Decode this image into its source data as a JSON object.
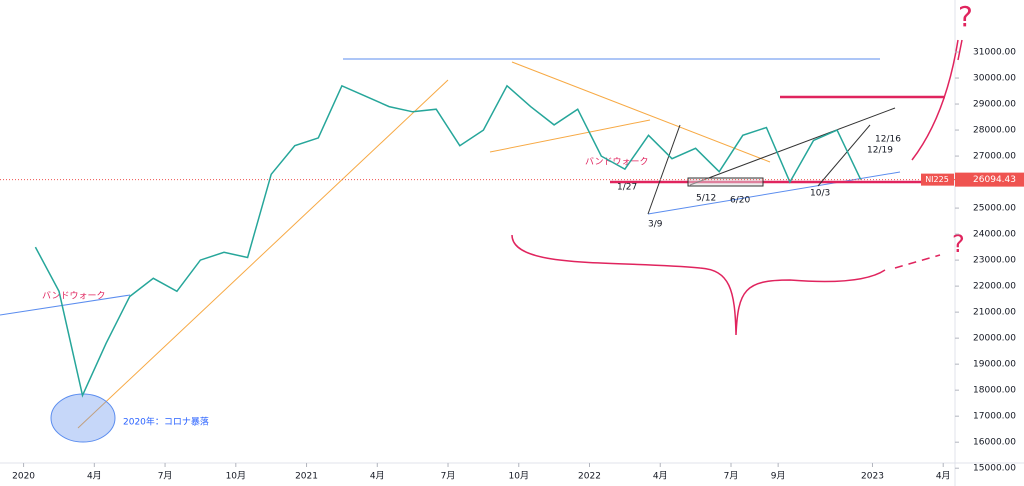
{
  "chart_data": {
    "type": "line",
    "symbol": "NI225",
    "last_value": 26094.43,
    "x": [
      0.5,
      1.5,
      2.5,
      3.5,
      4.5,
      5.5,
      6.5,
      7.5,
      8.5,
      9.5,
      10.5,
      11.5,
      12.5,
      13.5,
      14.5,
      15.5,
      16.5,
      17.5,
      18.5,
      19.5,
      20.5,
      21.5,
      22.5,
      23.5,
      24.5,
      25.5,
      26.5,
      27.5,
      28.5,
      29.5,
      30.5,
      31.5,
      32.5,
      33.5,
      34.5,
      35.5
    ],
    "values": [
      23500,
      21800,
      17800,
      19800,
      21600,
      22300,
      21800,
      23000,
      23300,
      23100,
      26300,
      27400,
      27700,
      29700,
      29300,
      28900,
      28700,
      28800,
      27400,
      28000,
      29700,
      28900,
      28200,
      28800,
      27000,
      26500,
      27800,
      26900,
      27300,
      26400,
      27800,
      28100,
      26000,
      27600,
      28000,
      26094.43
    ],
    "color": "#26a69a",
    "xlim": [
      -1,
      39.5
    ],
    "xticks": [
      {
        "value": 0,
        "label": "2020"
      },
      {
        "value": 3,
        "label": "4月"
      },
      {
        "value": 6,
        "label": "7月"
      },
      {
        "value": 9,
        "label": "10月"
      },
      {
        "value": 12,
        "label": "2021"
      },
      {
        "value": 15,
        "label": "4月"
      },
      {
        "value": 18,
        "label": "7月"
      },
      {
        "value": 21,
        "label": "10月"
      },
      {
        "value": 24,
        "label": "2022"
      },
      {
        "value": 27,
        "label": "4月"
      },
      {
        "value": 30,
        "label": "7月"
      },
      {
        "value": 32,
        "label": "9月"
      },
      {
        "value": 36,
        "label": "2023"
      },
      {
        "value": 39,
        "label": "4月"
      }
    ],
    "ylim": [
      15200,
      33000
    ],
    "yticks": [
      {
        "value": 15000,
        "label": "15000.00"
      },
      {
        "value": 16000,
        "label": "16000.00"
      },
      {
        "value": 17000,
        "label": "17000.00"
      },
      {
        "value": 18000,
        "label": "18000.00"
      },
      {
        "value": 19000,
        "label": "19000.00"
      },
      {
        "value": 20000,
        "label": "20000.00"
      },
      {
        "value": 21000,
        "label": "21000.00"
      },
      {
        "value": 22000,
        "label": "22000.00"
      },
      {
        "value": 23000,
        "label": "23000.00"
      },
      {
        "value": 24000,
        "label": "24000.00"
      },
      {
        "value": 25000,
        "label": "25000.00"
      },
      {
        "value": 26000,
        "label": "26000.00"
      },
      {
        "value": 27000,
        "label": "27000.00"
      },
      {
        "value": 28000,
        "label": "28000.00"
      },
      {
        "value": 29000,
        "label": "29000.00"
      },
      {
        "value": 30000,
        "label": "30000.00"
      },
      {
        "value": 31000,
        "label": "31000.00"
      }
    ],
    "annotations": [
      "バンドウォーク",
      "2020年：コロナ暴落",
      "バンドウォーク",
      "1/27",
      "3/9",
      "5/12",
      "6/20",
      "10/3",
      "12/16",
      "12/19",
      "?",
      "?"
    ]
  }
}
